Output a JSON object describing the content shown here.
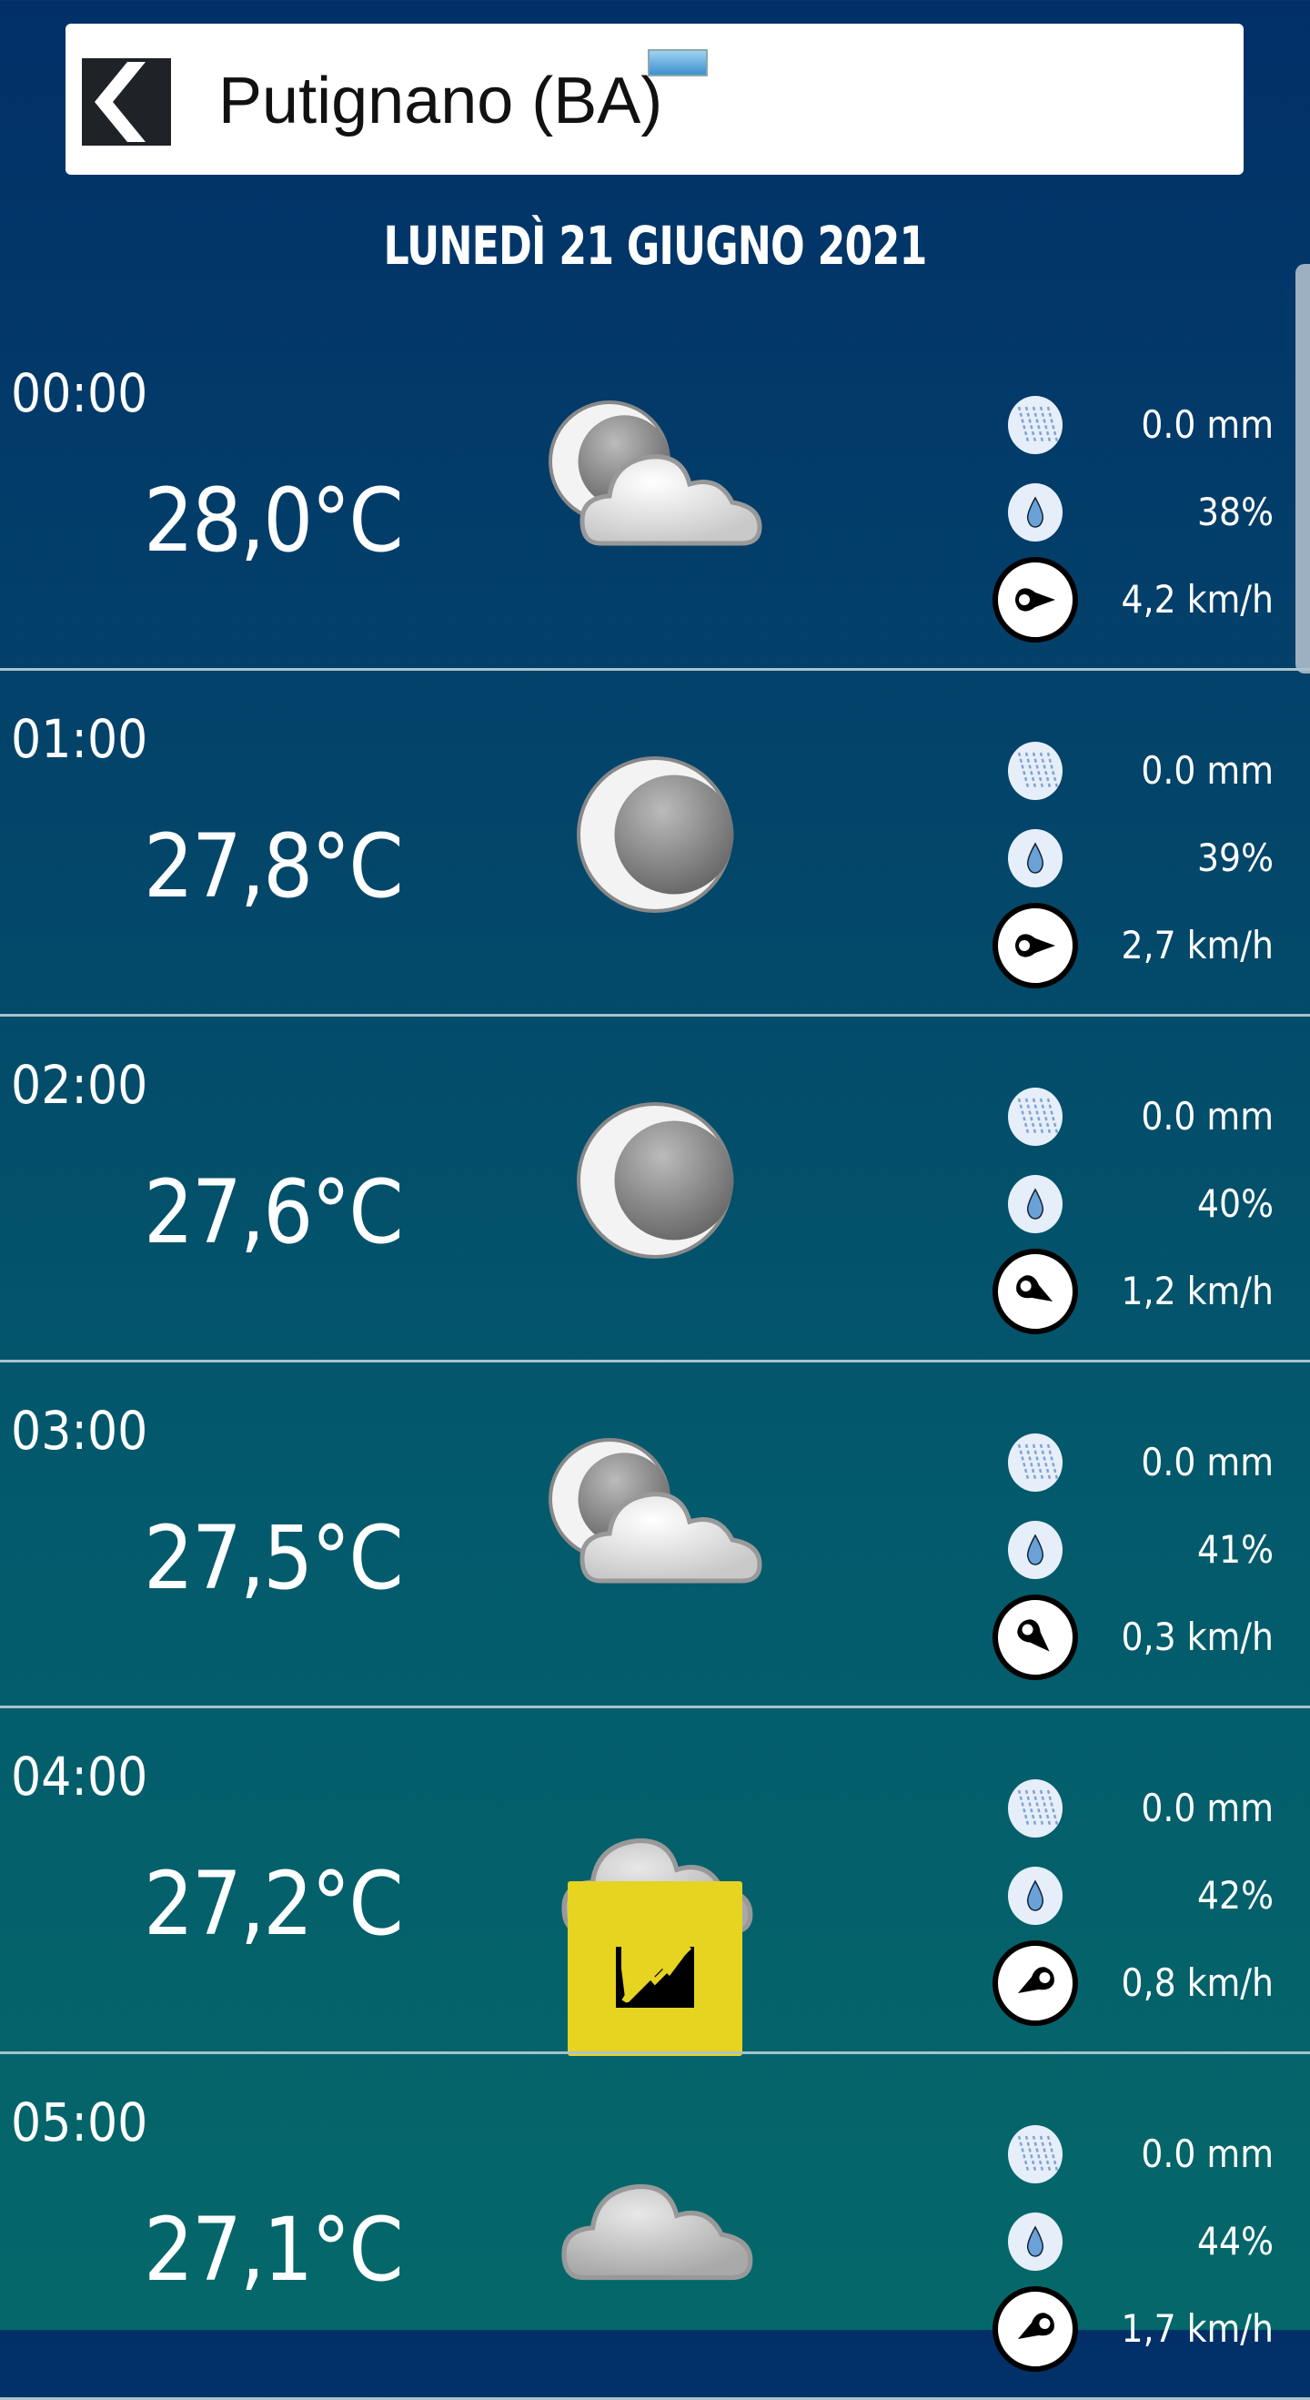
{
  "header": {
    "title": "Putignano (BA)",
    "back_icon": "back-chevron-icon"
  },
  "date": "LUNEDÌ 21 GIUGNO 2021",
  "colors": {
    "bg_top": "#022f68",
    "bg_bottom": "#04686a",
    "chart_badge": "#e6d420"
  },
  "rows": [
    {
      "time": "00:00",
      "temp": "28,0°C",
      "icon": "moon-cloud",
      "rain": "0.0 mm",
      "humidity": "38%",
      "wind": "4,2 km/h",
      "wind_dir_deg": 90
    },
    {
      "time": "01:00",
      "temp": "27,8°C",
      "icon": "moon",
      "rain": "0.0 mm",
      "humidity": "39%",
      "wind": "2,7 km/h",
      "wind_dir_deg": 90
    },
    {
      "time": "02:00",
      "temp": "27,6°C",
      "icon": "moon",
      "rain": "0.0 mm",
      "humidity": "40%",
      "wind": "1,2 km/h",
      "wind_dir_deg": 120
    },
    {
      "time": "03:00",
      "temp": "27,5°C",
      "icon": "moon-cloud",
      "rain": "0.0 mm",
      "humidity": "41%",
      "wind": "0,3 km/h",
      "wind_dir_deg": 135
    },
    {
      "time": "04:00",
      "temp": "27,2°C",
      "icon": "cloud",
      "rain": "0.0 mm",
      "humidity": "42%",
      "wind": "0,8 km/h",
      "wind_dir_deg": 240,
      "chart_badge": true
    },
    {
      "time": "05:00",
      "temp": "27,1°C",
      "icon": "cloud",
      "rain": "0.0 mm",
      "humidity": "44%",
      "wind": "1,7 km/h",
      "wind_dir_deg": 240
    }
  ]
}
